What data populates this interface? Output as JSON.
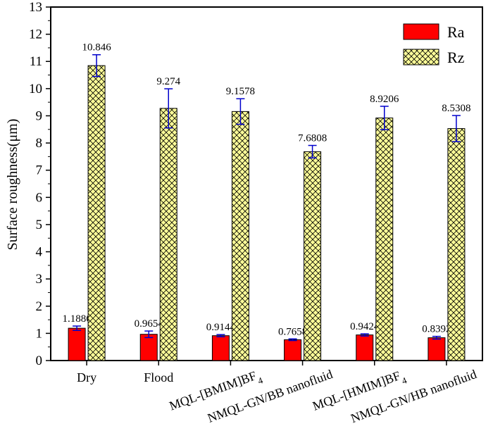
{
  "chart_data": {
    "type": "bar",
    "categories": [
      "Dry",
      "Flood",
      "MQL-[BMIM]BF4",
      "NMQL-GN/BB nanofluid",
      "MQL-[HMIM]BF4",
      "NMQL-GN/HB nanofluid"
    ],
    "category_labels": [
      {
        "main": "Dry",
        "sub": ""
      },
      {
        "main": "Flood",
        "sub": ""
      },
      {
        "main": "MQL-[BMIM]BF",
        "sub": "4"
      },
      {
        "main": "NMQL-GN/BB nanofluid",
        "sub": ""
      },
      {
        "main": "MQL-[HMIM]BF",
        "sub": "4"
      },
      {
        "main": "NMQL-GN/HB nanofluid",
        "sub": ""
      }
    ],
    "series": [
      {
        "name": "Ra",
        "values": [
          1.1886,
          0.9654,
          0.9144,
          0.7658,
          0.9424,
          0.8392
        ],
        "labels": [
          "1.1886",
          "0.9654",
          "0.9144",
          "0.7658",
          "0.9424",
          "0.8392"
        ],
        "errors": [
          0.08,
          0.12,
          0.04,
          0.03,
          0.04,
          0.05
        ],
        "color": "#ff0000",
        "pattern": "solid"
      },
      {
        "name": "Rz",
        "values": [
          10.846,
          9.274,
          9.1578,
          7.6808,
          8.9206,
          8.5308
        ],
        "labels": [
          "10.846",
          "9.274",
          "9.1578",
          "7.6808",
          "8.9206",
          "8.5308"
        ],
        "errors": [
          0.4,
          0.72,
          0.47,
          0.23,
          0.43,
          0.48
        ],
        "color": "#ffff99",
        "pattern": "crosshatch"
      }
    ],
    "ylabel": "Surface roughness(μm)",
    "xlabel": "",
    "ylim": [
      0,
      13
    ],
    "yticks": [
      0,
      1,
      2,
      3,
      4,
      5,
      6,
      7,
      8,
      9,
      10,
      11,
      12,
      13
    ],
    "grid": false,
    "legend_position": "top-right",
    "error_bar_color": "#0000cc"
  }
}
